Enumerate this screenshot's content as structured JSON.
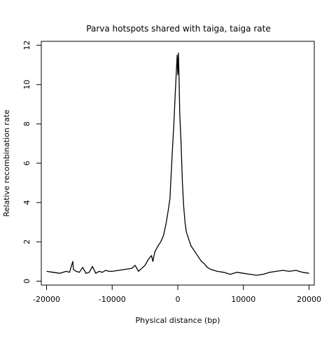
{
  "chart_data": {
    "type": "line",
    "title": "Parva hotspots shared with taiga, taiga rate",
    "xlabel": "Physical distance (bp)",
    "ylabel": "Relative recombination rate",
    "xlim": [
      -20800,
      20800
    ],
    "ylim": [
      -0.2,
      12.2
    ],
    "xticks": [
      -20000,
      -10000,
      0,
      10000,
      20000
    ],
    "xtick_labels": [
      "-20000",
      "-10000",
      "0",
      "10000",
      "20000"
    ],
    "yticks": [
      0,
      2,
      4,
      6,
      8,
      10,
      12
    ],
    "ytick_labels": [
      "0",
      "2",
      "4",
      "6",
      "8",
      "10",
      "12"
    ],
    "grid": false,
    "legend": "none",
    "line_color": "#000000",
    "series": [
      {
        "x": [
          -20000,
          -19000,
          -18000,
          -17000,
          -16500,
          -16000,
          -15900,
          -15500,
          -15000,
          -14500,
          -14000,
          -13500,
          -13000,
          -12500,
          -12000,
          -11500,
          -11000,
          -10500,
          -10000,
          -9000,
          -8000,
          -7000,
          -6500,
          -6000,
          -5000,
          -4500,
          -4000,
          -3800,
          -3500,
          -3000,
          -2600,
          -2200,
          -1800,
          -1500,
          -1200,
          -1000,
          -800,
          -600,
          -400,
          -200,
          -100,
          0,
          100,
          200,
          300,
          500,
          700,
          900,
          1100,
          1300,
          1600,
          2000,
          2400,
          2800,
          3200,
          3600,
          4000,
          4500,
          5000,
          6000,
          7000,
          8000,
          9000,
          10000,
          11000,
          12000,
          13000,
          14000,
          15000,
          16000,
          17000,
          18000,
          19000,
          20000
        ],
        "y": [
          0.5,
          0.45,
          0.4,
          0.5,
          0.45,
          1.0,
          0.6,
          0.5,
          0.45,
          0.7,
          0.4,
          0.45,
          0.75,
          0.4,
          0.5,
          0.45,
          0.55,
          0.5,
          0.5,
          0.55,
          0.6,
          0.65,
          0.8,
          0.5,
          0.8,
          1.1,
          1.3,
          1.0,
          1.5,
          1.8,
          2.0,
          2.3,
          2.9,
          3.5,
          4.2,
          5.5,
          6.8,
          8.0,
          9.5,
          10.8,
          11.5,
          10.5,
          11.6,
          10.2,
          8.5,
          7.0,
          5.0,
          3.8,
          3.0,
          2.5,
          2.2,
          1.8,
          1.6,
          1.4,
          1.2,
          1.0,
          0.9,
          0.7,
          0.6,
          0.5,
          0.45,
          0.35,
          0.45,
          0.4,
          0.35,
          0.3,
          0.35,
          0.45,
          0.5,
          0.55,
          0.5,
          0.55,
          0.45,
          0.4
        ]
      }
    ]
  }
}
